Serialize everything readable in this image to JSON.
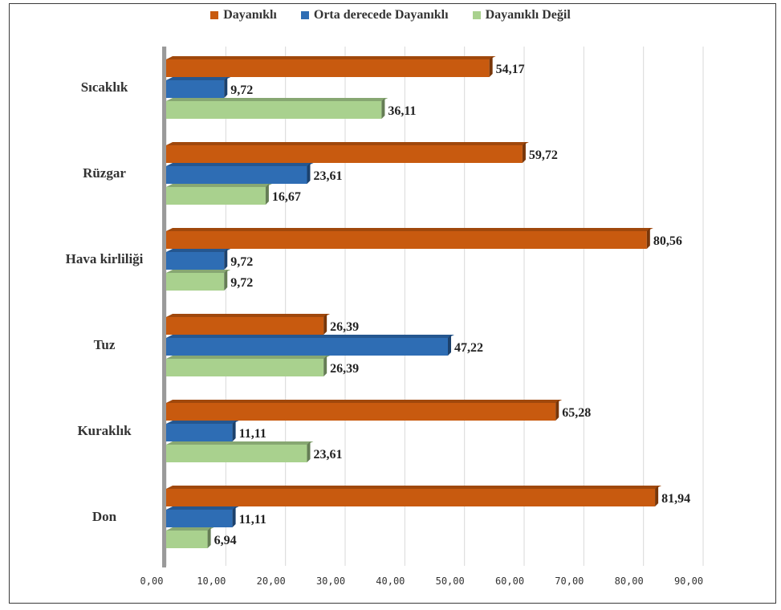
{
  "chart_data": {
    "type": "bar",
    "orientation": "horizontal",
    "categories": [
      "Sıcaklık",
      "Rüzgar",
      "Hava kirliliği",
      "Tuz",
      "Kuraklık",
      "Don"
    ],
    "series": [
      {
        "name": "Dayanıklı",
        "color": "#c85a0f",
        "values": [
          54.17,
          59.72,
          80.56,
          26.39,
          65.28,
          81.94
        ],
        "labels": [
          "54,17",
          "59,72",
          "80,56",
          "26,39",
          "65,28",
          "81,94"
        ]
      },
      {
        "name": "Orta derecede Dayanıklı",
        "color": "#2e6db4",
        "values": [
          9.72,
          23.61,
          9.72,
          47.22,
          11.11,
          11.11
        ],
        "labels": [
          "9,72",
          "23,61",
          "9,72",
          "47,22",
          "11,11",
          "11,11"
        ]
      },
      {
        "name": "Dayanıklı Değil",
        "color": "#a9d18e",
        "values": [
          36.11,
          16.67,
          9.72,
          26.39,
          23.61,
          6.94
        ],
        "labels": [
          "36,11",
          "16,67",
          "9,72",
          "26,39",
          "23,61",
          "6,94"
        ]
      }
    ],
    "xlim": [
      0,
      90
    ],
    "xticks": [
      "0,00",
      "10,00",
      "20,00",
      "30,00",
      "40,00",
      "50,00",
      "60,00",
      "70,00",
      "80,00",
      "90,00"
    ],
    "grid": true,
    "legend_position": "top"
  }
}
